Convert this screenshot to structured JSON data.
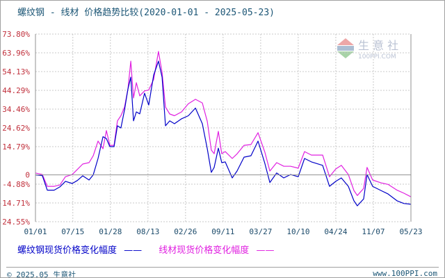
{
  "title": "螺纹钢 - 线材 价格趋势比较(2020-01-01 - 2025-05-23)",
  "legend": [
    {
      "label": "螺纹钢现货价格变化幅度",
      "color": "#0000c8"
    },
    {
      "label": "线材现货价格变化幅度",
      "color": "#e020e0"
    }
  ],
  "footer": {
    "copyright": "© 2025.05 生意社",
    "site": "www.100PPI.com"
  },
  "watermark": {
    "text": "生 意 社",
    "sub": "100PPI.COM"
  },
  "chart_data": {
    "type": "line",
    "title": "螺纹钢 - 线材 价格趋势比较(2020-01-01 - 2025-05-23)",
    "xlim": [
      "2020-01-01",
      "2025-05-23"
    ],
    "ylim": [
      -24.55,
      73.8
    ],
    "y_ticks": [
      73.8,
      63.96,
      54.13,
      44.29,
      34.46,
      24.62,
      14.79,
      0,
      -4.88,
      -14.71,
      -24.55
    ],
    "y_tick_labels": [
      "73.80%",
      "63.96%",
      "54.13%",
      "44.29%",
      "34.46%",
      "24.62%",
      "14.79%",
      "0",
      "-4.88%",
      "-14.71%",
      "-24.55%"
    ],
    "x_ticks": [
      "2020-01-01",
      "2020-07-15",
      "2021-01-28",
      "2021-08-13",
      "2022-02-26",
      "2022-09-11",
      "2023-03-27",
      "2023-10-10",
      "2024-04-24",
      "2024-11-07",
      "2025-05-23"
    ],
    "x_tick_labels": [
      "01/01",
      "07/15",
      "01/28",
      "08/13",
      "02/26",
      "09/11",
      "03/27",
      "10/10",
      "04/24",
      "11/07",
      "05/23"
    ],
    "grid": true,
    "legend_position": "bottom-left",
    "x": [
      "2020-01-01",
      "2020-02-06",
      "2020-03-03",
      "2020-04-08",
      "2020-05-08",
      "2020-06-06",
      "2020-07-12",
      "2020-08-07",
      "2020-09-05",
      "2020-10-08",
      "2020-10-30",
      "2020-11-24",
      "2020-12-20",
      "2021-01-07",
      "2021-01-25",
      "2021-02-16",
      "2021-03-06",
      "2021-03-24",
      "2021-04-12",
      "2021-04-30",
      "2021-05-15",
      "2021-05-29",
      "2021-06-13",
      "2021-07-01",
      "2021-07-26",
      "2021-08-17",
      "2021-09-12",
      "2021-10-07",
      "2021-10-26",
      "2021-11-13",
      "2021-12-05",
      "2021-12-30",
      "2022-02-05",
      "2022-03-13",
      "2022-04-19",
      "2022-05-25",
      "2022-06-20",
      "2022-07-11",
      "2022-07-26",
      "2022-08-17",
      "2022-09-04",
      "2022-09-22",
      "2022-10-29",
      "2022-11-23",
      "2022-12-30",
      "2023-02-04",
      "2023-03-13",
      "2023-04-18",
      "2023-05-14",
      "2023-06-19",
      "2023-07-26",
      "2023-08-31",
      "2023-10-10",
      "2023-11-12",
      "2023-12-18",
      "2024-02-15",
      "2024-03-22",
      "2024-04-24",
      "2024-05-23",
      "2024-06-29",
      "2024-07-28",
      "2024-08-15",
      "2024-09-17",
      "2024-10-05",
      "2024-11-03",
      "2024-12-17",
      "2025-01-23",
      "2025-03-11",
      "2025-04-16",
      "2025-05-23"
    ],
    "series": [
      {
        "name": "螺纹钢现货价格变化幅度",
        "color": "#0000c8",
        "values": [
          0,
          -0.4,
          -8,
          -8,
          -6.3,
          -3.4,
          -4.5,
          -3,
          -0.5,
          -2.7,
          0,
          8.6,
          20,
          19,
          14.8,
          14.8,
          25.7,
          24.6,
          34.1,
          45,
          51.2,
          28.3,
          33,
          32,
          42.8,
          36.6,
          52.3,
          59.6,
          51.2,
          25.7,
          28.3,
          26.8,
          29.4,
          31,
          35,
          26.8,
          13.7,
          1.3,
          3.9,
          14,
          6.4,
          6.8,
          -1.6,
          2,
          9.3,
          10,
          17.7,
          6,
          -4,
          1,
          -1.6,
          0.2,
          -1,
          8.6,
          6.8,
          5,
          -6,
          -3.4,
          -1.6,
          -6,
          -13.6,
          -16.2,
          -12.6,
          0.2,
          -6,
          -8.2,
          -10,
          -13.6,
          -15,
          -15.4
        ]
      },
      {
        "name": "线材现货价格变化幅度",
        "color": "#e020e0",
        "values": [
          1,
          0.2,
          -6,
          -6,
          -5.3,
          -1,
          0.2,
          2.8,
          5.7,
          6.4,
          10,
          17.7,
          13.7,
          23.2,
          15.5,
          15.5,
          28.3,
          31,
          35.5,
          45,
          59.6,
          40.3,
          48.3,
          41.4,
          44,
          44.5,
          50,
          64.7,
          53.7,
          35.5,
          31.9,
          31,
          33,
          37.3,
          39.6,
          37.7,
          28,
          13,
          11.1,
          22.8,
          11.1,
          12.2,
          8.6,
          11,
          15.5,
          15.9,
          22.1,
          11.9,
          2,
          6.4,
          4.5,
          4.5,
          3.5,
          12.2,
          10.4,
          10.4,
          -1,
          3.1,
          5,
          0.2,
          -8.2,
          -10.8,
          -7.1,
          3.9,
          -2.7,
          -4.2,
          -5,
          -8,
          -9.6,
          -11.5
        ]
      }
    ]
  }
}
